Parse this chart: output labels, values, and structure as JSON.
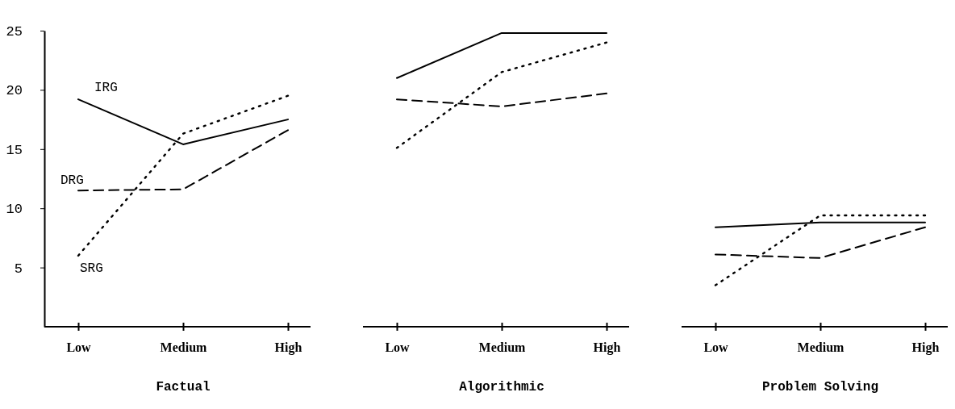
{
  "chart_data": [
    {
      "type": "line",
      "xlabel": "Factual",
      "categories": [
        "Low",
        "Medium",
        "High"
      ],
      "ylim": [
        0,
        25
      ],
      "yticks": [
        5,
        10,
        15,
        20,
        25
      ],
      "series": [
        {
          "name": "IRG",
          "color": "#000000",
          "line_style": "solid",
          "values": [
            19.2,
            15.4,
            17.5
          ]
        },
        {
          "name": "DRG",
          "color": "#000000",
          "line_style": "dashed",
          "values": [
            11.5,
            11.6,
            16.6
          ]
        },
        {
          "name": "SRG",
          "color": "#000000",
          "line_style": "dotted",
          "values": [
            6.0,
            16.3,
            19.5
          ]
        }
      ]
    },
    {
      "type": "line",
      "xlabel": "Algorithmic",
      "categories": [
        "Low",
        "Medium",
        "High"
      ],
      "ylim": [
        0,
        25
      ],
      "tick_labels": "x",
      "series": [
        {
          "color": "#000000",
          "line_style": "solid",
          "values": [
            21.0,
            24.8,
            24.8
          ]
        },
        {
          "color": "#000000",
          "line_style": "dashed",
          "values": [
            19.2,
            18.6,
            19.7
          ]
        },
        {
          "color": "#000000",
          "line_style": "dotted",
          "values": [
            15.1,
            21.5,
            24.0
          ]
        }
      ]
    },
    {
      "type": "line",
      "xlabel": "Problem Solving",
      "categories": [
        "Low",
        "Medium",
        "High"
      ],
      "ylim": [
        0,
        25
      ],
      "tick_labels": "x",
      "series": [
        {
          "color": "#000000",
          "line_style": "solid",
          "values": [
            8.4,
            8.8,
            8.8
          ]
        },
        {
          "color": "#000000",
          "line_style": "dashed",
          "values": [
            6.1,
            5.8,
            8.4
          ]
        },
        {
          "color": "#000000",
          "line_style": "dotted",
          "values": [
            3.5,
            9.4,
            9.4
          ]
        }
      ]
    }
  ]
}
